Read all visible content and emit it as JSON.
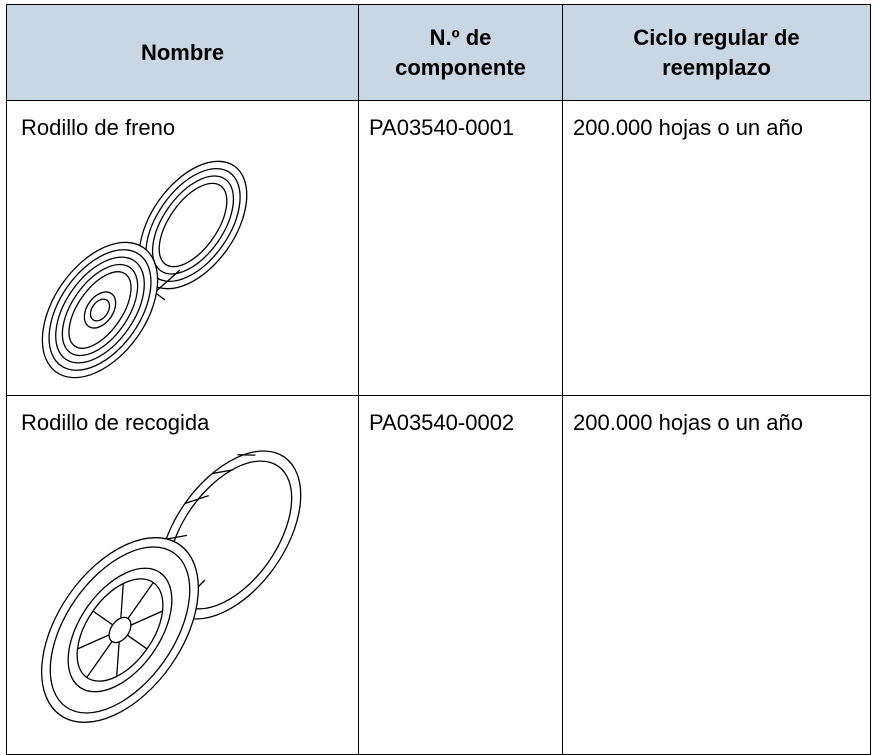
{
  "table": {
    "header": [
      [
        "Nombre"
      ],
      [
        "N.º de",
        "componente"
      ],
      [
        "Ciclo regular de",
        "reemplazo"
      ]
    ],
    "rows": [
      [
        "Rodillo de freno",
        "PA03540-0001",
        "200.000 hojas o un año"
      ],
      [
        "Rodillo de recogida",
        "PA03540-0002",
        "200.000 hojas o un año"
      ]
    ]
  }
}
